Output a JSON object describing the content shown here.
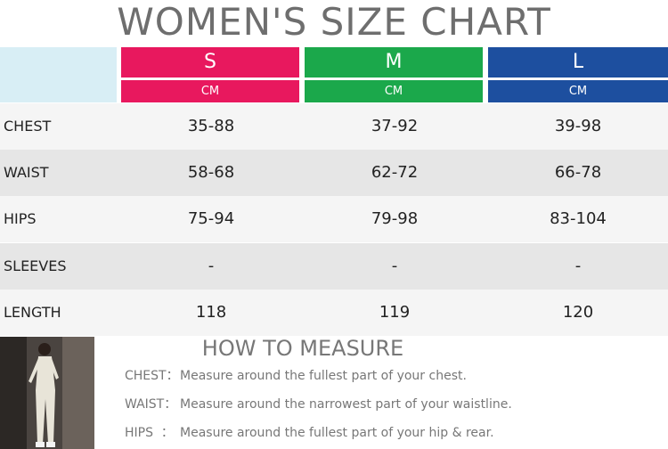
{
  "header": {
    "title": "WOMEN'S SIZE CHART"
  },
  "table": {
    "columns": [
      {
        "size": "S",
        "unit": "CM"
      },
      {
        "size": "M",
        "unit": "CM"
      },
      {
        "size": "L",
        "unit": "CM"
      }
    ],
    "rows": [
      [
        "CHEST",
        "35-88",
        "37-92",
        "39-98"
      ],
      [
        "WAIST",
        "58-68",
        "62-72",
        "66-78"
      ],
      [
        "HIPS",
        "75-94",
        "79-98",
        "83-104"
      ],
      [
        "SLEEVES",
        "-",
        "-",
        "-"
      ],
      [
        "LENGTH",
        "118",
        "119",
        "120"
      ]
    ]
  },
  "measure": {
    "title": "HOW TO MEASURE",
    "items": [
      {
        "label": "CHEST：",
        "text": "Measure around the fullest part of your chest."
      },
      {
        "label": "WAIST：",
        "text": "Measure around the narrowest part of your waistline."
      },
      {
        "label": "HIPS  ：",
        "text": "Measure around the fullest part of your hip & rear."
      }
    ]
  }
}
